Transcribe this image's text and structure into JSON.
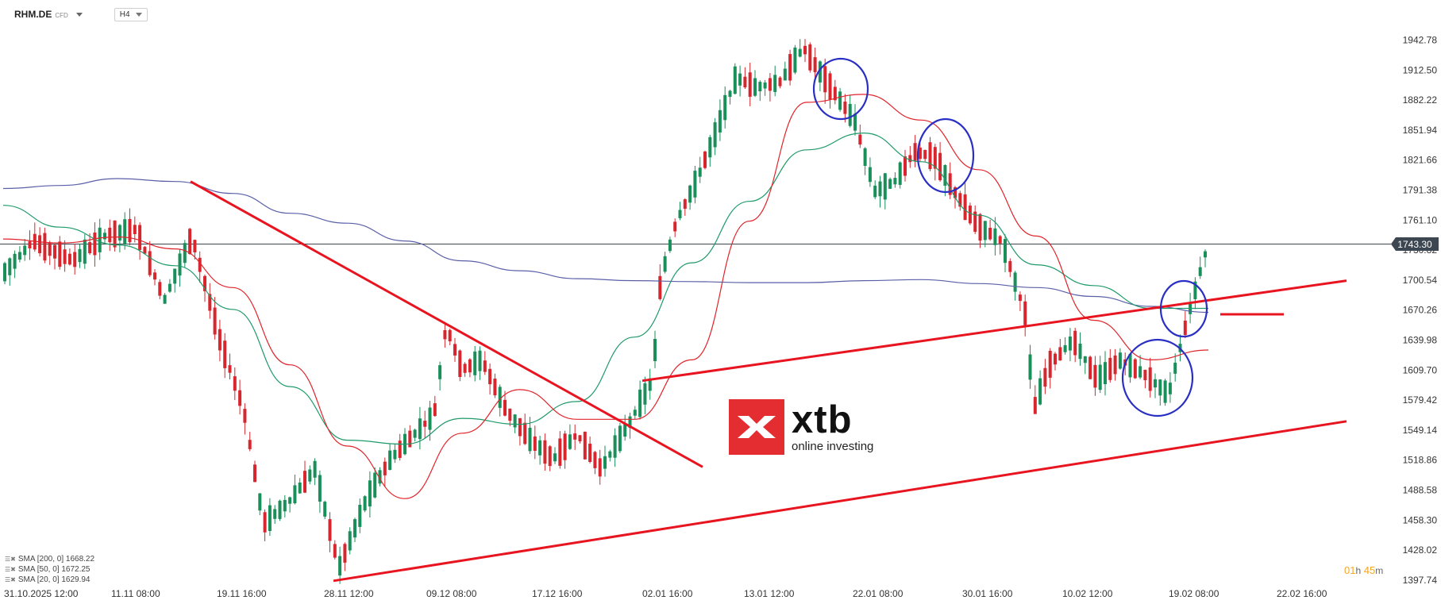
{
  "header": {
    "symbol": "RHM.DE",
    "symbol_suffix": "CFD",
    "timeframe": "H4"
  },
  "logo": {
    "name": "xtb",
    "tagline": "online investing",
    "brand_color": "#e32d30"
  },
  "legend": [
    {
      "label": "SMA [200, 0] 1668.22",
      "color": "#5a5fa8"
    },
    {
      "label": "SMA [50, 0] 1672.25",
      "color": "#1f9a6a"
    },
    {
      "label": "SMA [20, 0] 1629.94",
      "color": "#e0242b"
    }
  ],
  "timer": {
    "hours": "01",
    "hours_unit": "h",
    "minutes": "45",
    "minutes_unit": "m"
  },
  "current_price_label": "1743.30",
  "chart_data": {
    "type": "candlestick",
    "symbol": "RHM.DE",
    "timeframe": "H4",
    "y_ticks": [
      "1942.78",
      "1912.50",
      "1882.22",
      "1851.94",
      "1821.66",
      "1791.38",
      "1761.10",
      "1730.82",
      "1700.54",
      "1670.26",
      "1639.98",
      "1609.70",
      "1579.42",
      "1549.14",
      "1518.86",
      "1488.58",
      "1458.30",
      "1428.02",
      "1397.74"
    ],
    "x_ticks": [
      "31.10.2025   12:00",
      "11.11  08:00",
      "19.11  16:00",
      "28.11  12:00",
      "09.12  08:00",
      "17.12  16:00",
      "02.01  16:00",
      "13.01  12:00",
      "22.01  08:00",
      "30.01  16:00",
      "10.02  12:00",
      "19.02  08:00",
      "22.02  16:00"
    ],
    "current_price": 1743.3,
    "colors": {
      "up": "#1a8f5a",
      "down": "#d7262d",
      "sma200": "#5a5fa8",
      "sma50": "#1f9a6a",
      "sma20": "#e0242b",
      "annotation_line": "#e8141f",
      "annotation_circle": "#2a2fc4",
      "price_line": "#3c4752"
    },
    "sma200_values": [
      1793,
      1796,
      1803,
      1800,
      1788,
      1768,
      1758,
      1740,
      1720,
      1710,
      1702,
      1700,
      1699,
      1698,
      1698,
      1700,
      1701,
      1697,
      1693,
      1684,
      1674,
      1668
    ],
    "sma50_values": [
      1776,
      1754,
      1736,
      1715,
      1671,
      1593,
      1539,
      1535,
      1561,
      1555,
      1578,
      1643,
      1718,
      1780,
      1832,
      1849,
      1820,
      1766,
      1716,
      1695,
      1672,
      1672
    ],
    "sma20_values": [
      1742,
      1738,
      1744,
      1732,
      1693,
      1615,
      1533,
      1480,
      1546,
      1590,
      1560,
      1560,
      1620,
      1760,
      1880,
      1888,
      1862,
      1812,
      1745,
      1660,
      1620,
      1630
    ],
    "annotations": {
      "trendlines": [
        {
          "from": [
            "19.11",
            1800
          ],
          "to": [
            "02.01",
            1512
          ],
          "desc": "descending resistance"
        },
        {
          "from": [
            "28.11",
            1397
          ],
          "to": [
            "22.02",
            1558
          ]
        },
        {
          "from": [
            "02.01",
            1599
          ],
          "to": [
            "22.02",
            1700
          ]
        }
      ],
      "horizontal_mark": {
        "price": 1666
      },
      "circles": 4
    }
  }
}
